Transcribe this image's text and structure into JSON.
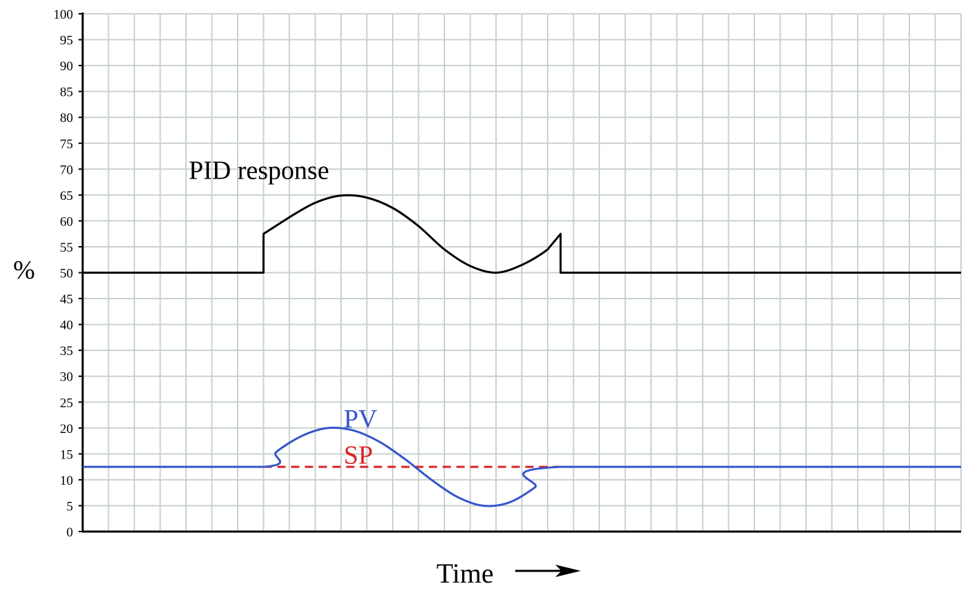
{
  "chart_data": {
    "type": "line",
    "xlabel": "Time",
    "ylabel": "%",
    "ylim": [
      0,
      100
    ],
    "ytick_step": 5,
    "yticks": [
      "0",
      "5",
      "10",
      "15",
      "20",
      "25",
      "30",
      "35",
      "40",
      "45",
      "50",
      "55",
      "60",
      "65",
      "70",
      "75",
      "80",
      "85",
      "90",
      "95",
      "100"
    ],
    "xlim": [
      0,
      34
    ],
    "grid": true,
    "x_axis_arrow": true,
    "annotations": [
      {
        "id": "pid",
        "text": "PID response",
        "x": 4,
        "y": 70,
        "color": "#000000"
      },
      {
        "id": "pv",
        "text": "PV",
        "x": 10,
        "y": 22,
        "color": "#3355cc"
      },
      {
        "id": "sp",
        "text": "SP",
        "x": 10,
        "y": 15,
        "color": "#dd2222"
      }
    ],
    "series": [
      {
        "name": "PID response",
        "color": "#000000",
        "style": "solid",
        "points": [
          [
            0,
            50
          ],
          [
            7,
            50
          ],
          [
            7,
            57.5
          ],
          [
            8,
            60.7
          ],
          [
            9,
            63.5
          ],
          [
            10,
            64.9
          ],
          [
            11,
            64.5
          ],
          [
            12,
            62.5
          ],
          [
            13,
            59
          ],
          [
            14,
            54.5
          ],
          [
            15,
            51.3
          ],
          [
            16,
            50
          ],
          [
            17,
            51.5
          ],
          [
            18,
            54.5
          ],
          [
            18.5,
            57.5
          ],
          [
            18.5,
            50
          ],
          [
            34,
            50
          ]
        ]
      },
      {
        "name": "PV",
        "color": "#3355cc",
        "style": "solid",
        "points": [
          [
            0,
            12.5
          ],
          [
            7,
            12.5
          ],
          [
            7.5,
            15.4
          ],
          [
            8.5,
            18.5
          ],
          [
            9.5,
            20
          ],
          [
            10.5,
            19.5
          ],
          [
            11.5,
            17.3
          ],
          [
            12.5,
            13.9
          ],
          [
            13.5,
            10
          ],
          [
            14.5,
            6.7
          ],
          [
            15.5,
            5
          ],
          [
            16.5,
            5.6
          ],
          [
            17.5,
            8.5
          ],
          [
            18.5,
            12.5
          ],
          [
            34,
            12.5
          ]
        ]
      },
      {
        "name": "SP",
        "color": "#dd2222",
        "style": "dashed",
        "points": [
          [
            7,
            12.5
          ],
          [
            18.5,
            12.5
          ]
        ]
      }
    ]
  }
}
